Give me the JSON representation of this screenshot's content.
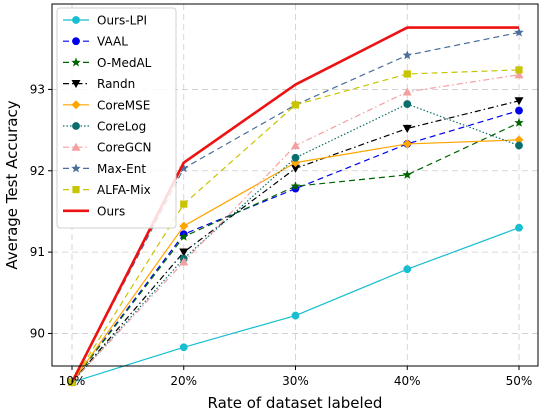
{
  "chart_data": {
    "type": "line",
    "title": "",
    "xlabel": "Rate of dataset labeled",
    "ylabel": "Average Test Accuracy",
    "categories": [
      "10%",
      "20%",
      "30%",
      "40%",
      "50%"
    ],
    "yticks": [
      90,
      91,
      92,
      93
    ],
    "ylim": [
      89.6,
      94.05
    ],
    "grid": "dashed",
    "legend_position": "top-left",
    "series": [
      {
        "name": "Ours-LPI",
        "color": "#17becf",
        "marker": "circle",
        "dash": "",
        "width": 1.2,
        "values": [
          89.4,
          89.83,
          90.22,
          90.79,
          91.3
        ]
      },
      {
        "name": "VAAL",
        "color": "#0000ee",
        "marker": "circle",
        "dash": "6,4",
        "width": 1.2,
        "values": [
          89.4,
          91.22,
          91.78,
          92.33,
          92.74
        ]
      },
      {
        "name": "O-MedAL",
        "color": "#006400",
        "marker": "star-filled",
        "dash": "6,4",
        "width": 1.2,
        "values": [
          89.4,
          91.19,
          91.81,
          91.95,
          92.59
        ]
      },
      {
        "name": "Randn",
        "color": "#000000",
        "marker": "triangle-down",
        "dash": "6,3,1.5,3",
        "width": 1.2,
        "values": [
          89.4,
          91.0,
          92.03,
          92.52,
          92.86
        ]
      },
      {
        "name": "CoreMSE",
        "color": "#ffa500",
        "marker": "diamond",
        "dash": "",
        "width": 1.2,
        "values": [
          89.4,
          91.32,
          92.1,
          92.33,
          92.38
        ]
      },
      {
        "name": "CoreLog",
        "color": "#0b6e6e",
        "marker": "circle",
        "dash": "1.5,2",
        "width": 1.2,
        "values": [
          89.4,
          90.92,
          92.16,
          92.82,
          92.31
        ]
      },
      {
        "name": "CoreGCN",
        "color": "#f4a0a0",
        "marker": "triangle-up",
        "dash": "6,3,1.5,3",
        "width": 1.2,
        "values": [
          89.4,
          90.88,
          92.31,
          92.97,
          93.18
        ]
      },
      {
        "name": "Max-Ent",
        "color": "#4a6f9a",
        "marker": "star",
        "dash": "6,4",
        "width": 1.2,
        "values": [
          89.4,
          92.03,
          92.81,
          93.42,
          93.7
        ]
      },
      {
        "name": "ALFA-Mix",
        "color": "#c8c400",
        "marker": "square",
        "dash": "6,4",
        "width": 1.2,
        "values": [
          89.4,
          91.59,
          92.81,
          93.19,
          93.24
        ]
      },
      {
        "name": "Ours",
        "color": "#ee1111",
        "marker": "none",
        "dash": "",
        "width": 2.6,
        "values": [
          89.4,
          92.1,
          93.06,
          93.76,
          93.76
        ]
      }
    ]
  }
}
